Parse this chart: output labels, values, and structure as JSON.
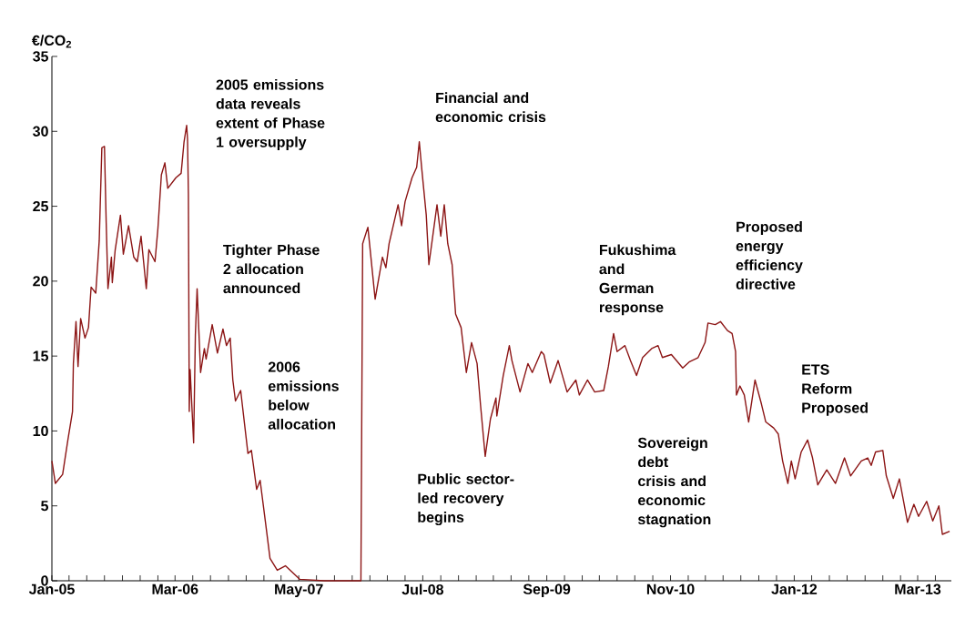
{
  "chart_data": {
    "type": "line",
    "ylabel": "€/CO$_{2}$",
    "xlim": [
      "2005-01-01",
      "2013-06-25"
    ],
    "ylim": [
      0,
      35
    ],
    "yticks": [
      0,
      5,
      10,
      15,
      20,
      25,
      30,
      35
    ],
    "xticks": [
      {
        "value": "2005-01",
        "label": "Jan-05"
      },
      {
        "value": "2005-03",
        "label": null
      },
      {
        "value": "2005-05",
        "label": null
      },
      {
        "value": "2005-07",
        "label": null
      },
      {
        "value": "2005-09",
        "label": null
      },
      {
        "value": "2005-11",
        "label": null
      },
      {
        "value": "2006-01",
        "label": null
      },
      {
        "value": "2006-03",
        "label": "Mar-06"
      },
      {
        "value": "2006-05",
        "label": null
      },
      {
        "value": "2006-07",
        "label": null
      },
      {
        "value": "2006-09",
        "label": null
      },
      {
        "value": "2006-11",
        "label": null
      },
      {
        "value": "2007-01",
        "label": null
      },
      {
        "value": "2007-03",
        "label": null
      },
      {
        "value": "2007-05",
        "label": "May-07"
      },
      {
        "value": "2007-07",
        "label": null
      },
      {
        "value": "2007-09",
        "label": null
      },
      {
        "value": "2007-11",
        "label": null
      },
      {
        "value": "2008-01",
        "label": null
      },
      {
        "value": "2008-03",
        "label": null
      },
      {
        "value": "2008-05",
        "label": null
      },
      {
        "value": "2008-07",
        "label": "Jul-08"
      },
      {
        "value": "2008-09",
        "label": null
      },
      {
        "value": "2008-11",
        "label": null
      },
      {
        "value": "2009-01",
        "label": null
      },
      {
        "value": "2009-03",
        "label": null
      },
      {
        "value": "2009-05",
        "label": null
      },
      {
        "value": "2009-07",
        "label": null
      },
      {
        "value": "2009-09",
        "label": "Sep-09"
      },
      {
        "value": "2009-11",
        "label": null
      },
      {
        "value": "2010-01",
        "label": null
      },
      {
        "value": "2010-03",
        "label": null
      },
      {
        "value": "2010-05",
        "label": null
      },
      {
        "value": "2010-07",
        "label": null
      },
      {
        "value": "2010-09",
        "label": null
      },
      {
        "value": "2010-11",
        "label": "Nov-10"
      },
      {
        "value": "2011-01",
        "label": null
      },
      {
        "value": "2011-03",
        "label": null
      },
      {
        "value": "2011-05",
        "label": null
      },
      {
        "value": "2011-07",
        "label": null
      },
      {
        "value": "2011-09",
        "label": null
      },
      {
        "value": "2011-11",
        "label": null
      },
      {
        "value": "2012-01",
        "label": "Jan-12"
      },
      {
        "value": "2012-03",
        "label": null
      },
      {
        "value": "2012-05",
        "label": null
      },
      {
        "value": "2012-07",
        "label": null
      },
      {
        "value": "2012-09",
        "label": null
      },
      {
        "value": "2012-11",
        "label": null
      },
      {
        "value": "2013-01",
        "label": null
      },
      {
        "value": "2013-03",
        "label": "Mar-13"
      },
      {
        "value": "2013-05",
        "label": null
      }
    ],
    "marker": "none",
    "line_style": "solid",
    "x": [
      "2005-01-01",
      "2005-01-13",
      "2005-02-07",
      "2005-02-25",
      "2005-03-13",
      "2005-03-16",
      "2005-03-25",
      "2005-04-01",
      "2005-04-10",
      "2005-04-25",
      "2005-05-07",
      "2005-05-16",
      "2005-06-01",
      "2005-06-13",
      "2005-06-22",
      "2005-07-01",
      "2005-07-07",
      "2005-07-13",
      "2005-07-25",
      "2005-07-28",
      "2005-08-07",
      "2005-08-25",
      "2005-09-04",
      "2005-09-22",
      "2005-10-10",
      "2005-10-22",
      "2005-11-04",
      "2005-11-22",
      "2005-12-01",
      "2005-12-22",
      "2006-01-01",
      "2006-01-13",
      "2006-01-25",
      "2006-02-04",
      "2006-03-04",
      "2006-03-22",
      "2006-04-01",
      "2006-04-10",
      "2006-04-13",
      "2006-04-16",
      "2006-04-19",
      "2006-04-22",
      "2006-05-04",
      "2006-05-10",
      "2006-05-16",
      "2006-05-28",
      "2006-06-10",
      "2006-06-16",
      "2006-07-07",
      "2006-07-25",
      "2006-08-13",
      "2006-08-25",
      "2006-09-07",
      "2006-09-16",
      "2006-09-25",
      "2006-10-13",
      "2006-11-07",
      "2006-11-19",
      "2006-12-07",
      "2006-12-19",
      "2007-01-07",
      "2007-01-22",
      "2007-02-16",
      "2007-03-16",
      "2007-05-04",
      "2007-07-28",
      "2007-12-01",
      "2007-12-07",
      "2007-12-25",
      "2008-01-19",
      "2008-02-13",
      "2008-02-25",
      "2008-03-07",
      "2008-04-07",
      "2008-04-19",
      "2008-05-01",
      "2008-05-25",
      "2008-06-10",
      "2008-06-19",
      "2008-06-28",
      "2008-07-13",
      "2008-07-22",
      "2008-08-19",
      "2008-09-01",
      "2008-09-13",
      "2008-09-25",
      "2008-10-10",
      "2008-10-22",
      "2008-11-10",
      "2008-11-28",
      "2008-12-16",
      "2009-01-04",
      "2009-01-16",
      "2009-02-01",
      "2009-02-19",
      "2009-03-10",
      "2009-03-13",
      "2009-04-04",
      "2009-04-25",
      "2009-05-04",
      "2009-06-01",
      "2009-06-28",
      "2009-07-13",
      "2009-08-13",
      "2009-08-22",
      "2009-09-13",
      "2009-10-10",
      "2009-11-10",
      "2009-12-10",
      "2009-12-22",
      "2010-01-19",
      "2010-02-13",
      "2010-03-16",
      "2010-04-01",
      "2010-04-19",
      "2010-05-01",
      "2010-05-28",
      "2010-06-16",
      "2010-07-07",
      "2010-07-28",
      "2010-08-28",
      "2010-09-19",
      "2010-10-04",
      "2010-11-04",
      "2010-12-13",
      "2011-01-04",
      "2011-02-04",
      "2011-02-28",
      "2011-03-10",
      "2011-04-04",
      "2011-04-22",
      "2011-05-16",
      "2011-06-01",
      "2011-06-13",
      "2011-06-16",
      "2011-06-28",
      "2011-07-13",
      "2011-07-28",
      "2011-08-19",
      "2011-09-10",
      "2011-09-25",
      "2011-10-22",
      "2011-11-07",
      "2011-11-22",
      "2011-12-10",
      "2011-12-22",
      "2012-01-04",
      "2012-01-25",
      "2012-02-16",
      "2012-03-04",
      "2012-03-22",
      "2012-04-22",
      "2012-05-22",
      "2012-06-22",
      "2012-07-13",
      "2012-08-19",
      "2012-09-10",
      "2012-09-22",
      "2012-10-07",
      "2012-11-01",
      "2012-11-13",
      "2012-12-07",
      "2012-12-28",
      "2013-01-25",
      "2013-02-16",
      "2013-03-04",
      "2013-04-01",
      "2013-04-22",
      "2013-05-13",
      "2013-05-25",
      "2013-06-19"
    ],
    "series": [
      {
        "color": "#8c1515",
        "values": [
          8.0,
          6.5,
          7.1,
          9.4,
          11.3,
          14.5,
          17.3,
          14.3,
          17.5,
          16.2,
          16.9,
          19.6,
          19.2,
          22.7,
          28.9,
          29.0,
          23.9,
          19.5,
          21.6,
          19.9,
          22.1,
          24.4,
          21.8,
          23.7,
          21.6,
          21.3,
          23.0,
          19.5,
          22.1,
          21.3,
          23.5,
          27.1,
          27.9,
          26.2,
          26.9,
          27.2,
          29.3,
          30.4,
          29.5,
          25.8,
          11.3,
          14.1,
          9.2,
          16.4,
          19.5,
          13.9,
          15.5,
          14.8,
          17.1,
          15.2,
          16.8,
          15.7,
          16.2,
          13.4,
          12.0,
          12.7,
          8.5,
          8.7,
          6.1,
          6.7,
          3.8,
          1.5,
          0.7,
          1.0,
          0.1,
          0.0,
          0.0,
          22.5,
          23.6,
          18.8,
          21.6,
          20.9,
          22.5,
          25.1,
          23.7,
          25.3,
          26.9,
          27.6,
          29.3,
          27.4,
          24.4,
          21.1,
          25.1,
          23.0,
          25.1,
          22.5,
          21.1,
          17.8,
          16.9,
          13.9,
          15.9,
          14.5,
          11.7,
          8.3,
          10.8,
          12.2,
          11.0,
          13.7,
          15.7,
          14.7,
          12.6,
          14.5,
          13.9,
          15.3,
          15.1,
          13.2,
          14.7,
          12.6,
          13.4,
          12.4,
          13.4,
          12.6,
          12.7,
          14.3,
          16.5,
          15.3,
          15.7,
          14.7,
          13.7,
          14.9,
          15.5,
          15.7,
          14.9,
          15.1,
          14.2,
          14.6,
          14.9,
          15.9,
          17.2,
          17.1,
          17.3,
          16.7,
          16.5,
          15.3,
          12.4,
          13.0,
          12.4,
          10.6,
          13.4,
          11.8,
          10.6,
          10.2,
          9.8,
          8.0,
          6.5,
          8.0,
          6.8,
          8.6,
          9.4,
          8.2,
          6.4,
          7.4,
          6.5,
          8.2,
          7.0,
          8.0,
          8.2,
          7.7,
          8.6,
          8.7,
          7.0,
          5.5,
          6.8,
          3.9,
          5.1,
          4.3,
          5.3,
          4.0,
          5.0,
          3.1,
          3.3
        ]
      }
    ],
    "annotations": [
      "2005 emissions data reveals extent of Phase 1 oversupply",
      "Tighter Phase 2 allocation announced",
      "2006 emissions below allocation",
      "Financial and economic crisis",
      "Public sector-led recovery begins",
      "Fukushima and German response",
      "Sovereign debt crisis and economic stagnation",
      "Proposed energy efficiency directive",
      "ETS Reform Proposed"
    ]
  }
}
